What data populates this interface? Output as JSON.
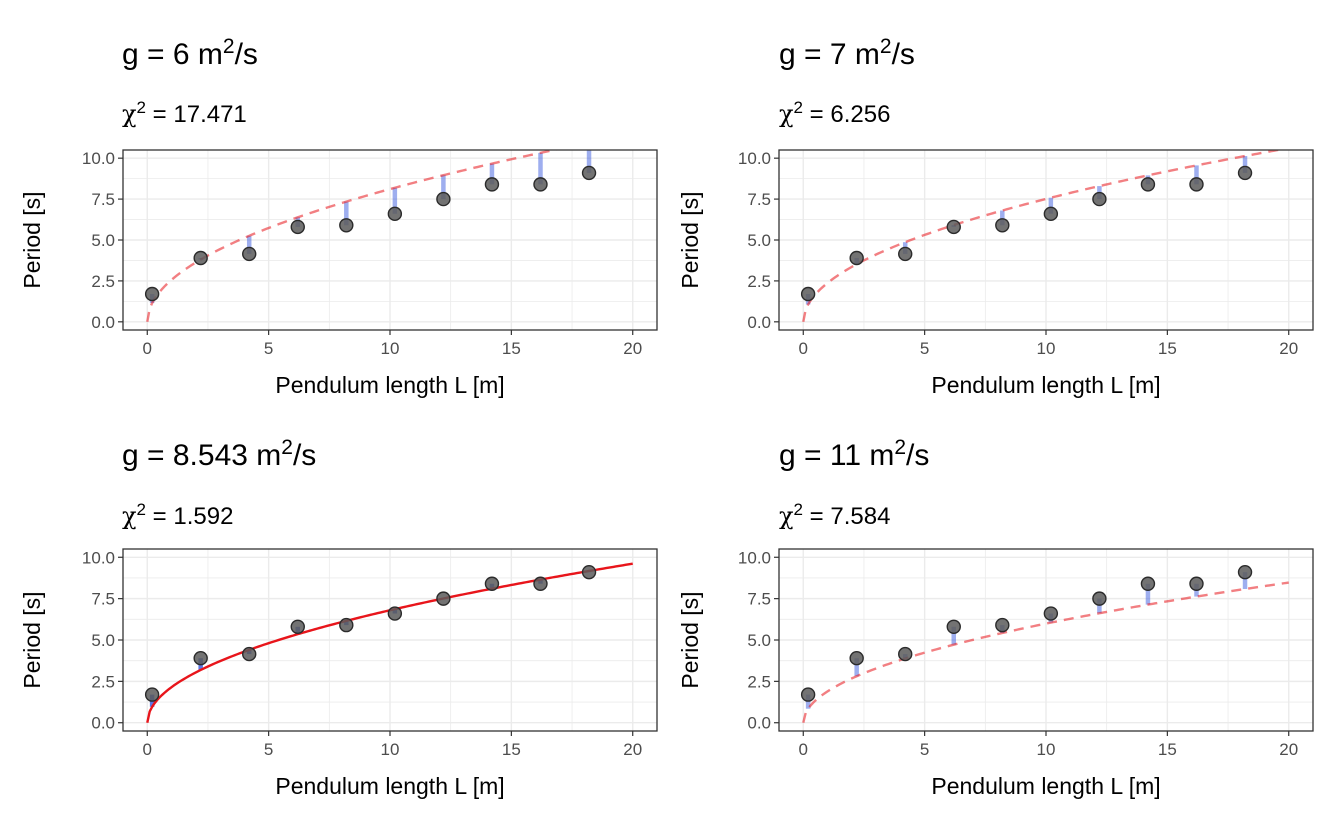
{
  "chart_data": [
    {
      "type": "scatter",
      "title_prefix": "g = 6 m",
      "title_sup": "2",
      "title_suffix": "/s",
      "subtitle_symbol": "χ",
      "subtitle_sup": "2",
      "subtitle_value": " = 17.471",
      "g": 6,
      "fit_style": "dashed",
      "xlabel": "Pendulum length L [m]",
      "ylabel": "Period [s]",
      "xlim": [
        0,
        20
      ],
      "ylim": [
        0,
        10
      ],
      "xticks": [
        "0",
        "5",
        "10",
        "15",
        "20"
      ],
      "yticks": [
        "0.0",
        "2.5",
        "5.0",
        "7.5",
        "10.0"
      ],
      "x": [
        0.2,
        2.2,
        4.2,
        6.2,
        8.2,
        10.2,
        12.2,
        14.2,
        16.2,
        18.2
      ],
      "y": [
        1.7,
        3.9,
        4.15,
        5.8,
        5.9,
        6.6,
        7.5,
        8.4,
        8.4,
        9.1
      ]
    },
    {
      "type": "scatter",
      "title_prefix": "g = 7 m",
      "title_sup": "2",
      "title_suffix": "/s",
      "subtitle_symbol": "χ",
      "subtitle_sup": "2",
      "subtitle_value": " = 6.256",
      "g": 7,
      "fit_style": "dashed",
      "xlabel": "Pendulum length L [m]",
      "ylabel": "Period [s]",
      "xlim": [
        0,
        20
      ],
      "ylim": [
        0,
        10
      ],
      "xticks": [
        "0",
        "5",
        "10",
        "15",
        "20"
      ],
      "yticks": [
        "0.0",
        "2.5",
        "5.0",
        "7.5",
        "10.0"
      ],
      "x": [
        0.2,
        2.2,
        4.2,
        6.2,
        8.2,
        10.2,
        12.2,
        14.2,
        16.2,
        18.2
      ],
      "y": [
        1.7,
        3.9,
        4.15,
        5.8,
        5.9,
        6.6,
        7.5,
        8.4,
        8.4,
        9.1
      ]
    },
    {
      "type": "scatter",
      "title_prefix": "g = 8.543 m",
      "title_sup": "2",
      "title_suffix": "/s",
      "subtitle_symbol": "χ",
      "subtitle_sup": "2",
      "subtitle_value": " = 1.592",
      "g": 8.543,
      "fit_style": "solid",
      "xlabel": "Pendulum length L [m]",
      "ylabel": "Period [s]",
      "xlim": [
        0,
        20
      ],
      "ylim": [
        0,
        10
      ],
      "xticks": [
        "0",
        "5",
        "10",
        "15",
        "20"
      ],
      "yticks": [
        "0.0",
        "2.5",
        "5.0",
        "7.5",
        "10.0"
      ],
      "x": [
        0.2,
        2.2,
        4.2,
        6.2,
        8.2,
        10.2,
        12.2,
        14.2,
        16.2,
        18.2
      ],
      "y": [
        1.7,
        3.9,
        4.15,
        5.8,
        5.9,
        6.6,
        7.5,
        8.4,
        8.4,
        9.1
      ]
    },
    {
      "type": "scatter",
      "title_prefix": "g = 11 m",
      "title_sup": "2",
      "title_suffix": "/s",
      "subtitle_symbol": "χ",
      "subtitle_sup": "2",
      "subtitle_value": " = 7.584",
      "g": 11,
      "fit_style": "dashed",
      "xlabel": "Pendulum length L [m]",
      "ylabel": "Period [s]",
      "xlim": [
        0,
        20
      ],
      "ylim": [
        0,
        10
      ],
      "xticks": [
        "0",
        "5",
        "10",
        "15",
        "20"
      ],
      "yticks": [
        "0.0",
        "2.5",
        "5.0",
        "7.5",
        "10.0"
      ],
      "x": [
        0.2,
        2.2,
        4.2,
        6.2,
        8.2,
        10.2,
        12.2,
        14.2,
        16.2,
        18.2
      ],
      "y": [
        1.7,
        3.9,
        4.15,
        5.8,
        5.9,
        6.6,
        7.5,
        8.4,
        8.4,
        9.1
      ]
    }
  ],
  "colors": {
    "fit_line": "#e8151b",
    "residual": "#3f5fe0",
    "point_fill": "#5a5a5a",
    "point_stroke": "#2b2b2b",
    "grid": "#ebebeb",
    "panel_border": "#333333"
  }
}
